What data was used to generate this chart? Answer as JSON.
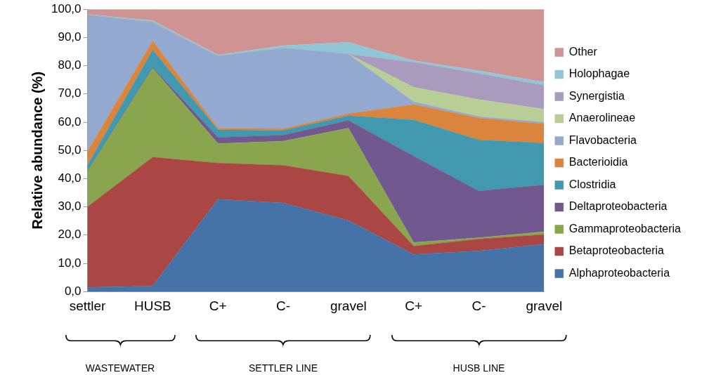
{
  "chart_data": {
    "type": "area",
    "stacked": true,
    "ylabel": "Relative abundance (%)",
    "categories": [
      "settler",
      "HUSB",
      "C+",
      "C-",
      "gravel",
      "C+",
      "C-",
      "gravel"
    ],
    "ylim": [
      0,
      100
    ],
    "yticks": [
      {
        "value": 0,
        "label": "0,0"
      },
      {
        "value": 10,
        "label": "10,0"
      },
      {
        "value": 20,
        "label": "20,0"
      },
      {
        "value": 30,
        "label": "30,0"
      },
      {
        "value": 40,
        "label": "40,0"
      },
      {
        "value": 50,
        "label": "50,0"
      },
      {
        "value": 60,
        "label": "60,0"
      },
      {
        "value": 70,
        "label": "70,0"
      },
      {
        "value": 80,
        "label": "80,0"
      },
      {
        "value": 90,
        "label": "90,0"
      },
      {
        "value": 100,
        "label": "100,0"
      }
    ],
    "legend": "right",
    "annotations": [
      "WASTEWATER",
      "SETTLER LINE",
      "HUSB LINE"
    ],
    "series": [
      {
        "name": "Alphaproteobacteria",
        "color": "#4572a7",
        "values": [
          1.5,
          2.0,
          32.7,
          31.4,
          25.2,
          13.2,
          14.4,
          16.8
        ]
      },
      {
        "name": "Betaproteobacteria",
        "color": "#aa4643",
        "values": [
          28.5,
          45.6,
          12.8,
          13.3,
          15.7,
          2.9,
          4.2,
          3.4
        ]
      },
      {
        "name": "Gammaproteobacteria",
        "color": "#89a54e",
        "values": [
          12.6,
          31.5,
          6.9,
          8.6,
          17.0,
          1.3,
          0.5,
          1.0
        ]
      },
      {
        "name": "Deltaproteobacteria",
        "color": "#71588f",
        "values": [
          0,
          0.3,
          2.2,
          2.1,
          2.7,
          30.6,
          16.5,
          16.6
        ]
      },
      {
        "name": "Clostridia",
        "color": "#4198af",
        "values": [
          2.1,
          6.2,
          2.7,
          1.7,
          1.7,
          12.8,
          18.1,
          14.8
        ]
      },
      {
        "name": "Bacterioidia",
        "color": "#db843d",
        "values": [
          5.0,
          3.2,
          0.6,
          0.6,
          0.7,
          5.5,
          7.8,
          6.8
        ]
      },
      {
        "name": "Flavobacteria",
        "color": "#93a9cf",
        "values": [
          48.3,
          6.4,
          25.5,
          28.5,
          21.1,
          0.9,
          0.5,
          0.6
        ]
      },
      {
        "name": "Anaerolineae",
        "color": "#b9cd96",
        "values": [
          0,
          0,
          0,
          0,
          0,
          5.2,
          6.0,
          4.6
        ]
      },
      {
        "name": "Synergistia",
        "color": "#a99bbd",
        "values": [
          0,
          0.3,
          0,
          0,
          0,
          8.8,
          9.2,
          8.4
        ]
      },
      {
        "name": "Holophagae",
        "color": "#92c5d5",
        "values": [
          0.2,
          0.5,
          0.4,
          0.9,
          4.2,
          0.6,
          1.0,
          1.2
        ]
      },
      {
        "name": "Other",
        "color": "#d09393",
        "values": [
          1.8,
          4.0,
          16.2,
          12.9,
          11.7,
          18.2,
          21.8,
          25.8
        ]
      }
    ]
  }
}
